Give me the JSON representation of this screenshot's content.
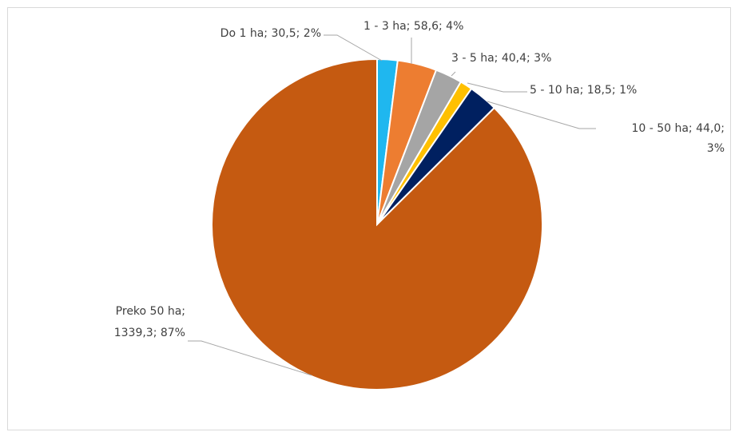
{
  "chart_data": {
    "type": "pie",
    "title": "",
    "legend": "none",
    "slices": [
      {
        "category": "Do 1 ha",
        "value": 30.5,
        "percent": 2,
        "value_label": "30,5",
        "color": "#1fb7ef"
      },
      {
        "category": "1 - 3 ha",
        "value": 58.6,
        "percent": 4,
        "value_label": "58,6",
        "color": "#ed7d31"
      },
      {
        "category": "3 - 5 ha",
        "value": 40.4,
        "percent": 3,
        "value_label": "40,4",
        "color": "#a5a5a5"
      },
      {
        "category": "5 - 10 ha",
        "value": 18.5,
        "percent": 1,
        "value_label": "18,5",
        "color": "#ffc000"
      },
      {
        "category": "10 - 50 ha",
        "value": 44.0,
        "percent": 3,
        "value_label": "44,0",
        "color": "#002060"
      },
      {
        "category": "Preko 50 ha",
        "value": 1339.3,
        "percent": 87,
        "value_label": "1339,3",
        "color": "#c55a11"
      }
    ],
    "data_labels": [
      {
        "lines": [
          "Do 1 ha; 30,5; 2%"
        ]
      },
      {
        "lines": [
          "1 - 3 ha; 58,6; 4%"
        ]
      },
      {
        "lines": [
          "3 - 5 ha; 40,4; 3%"
        ]
      },
      {
        "lines": [
          "5 - 10 ha; 18,5; 1%"
        ]
      },
      {
        "lines": [
          "10 - 50 ha; 44,0;",
          "3%"
        ]
      },
      {
        "lines": [
          "Preko 50 ha;",
          "1339,3; 87%"
        ]
      }
    ]
  }
}
